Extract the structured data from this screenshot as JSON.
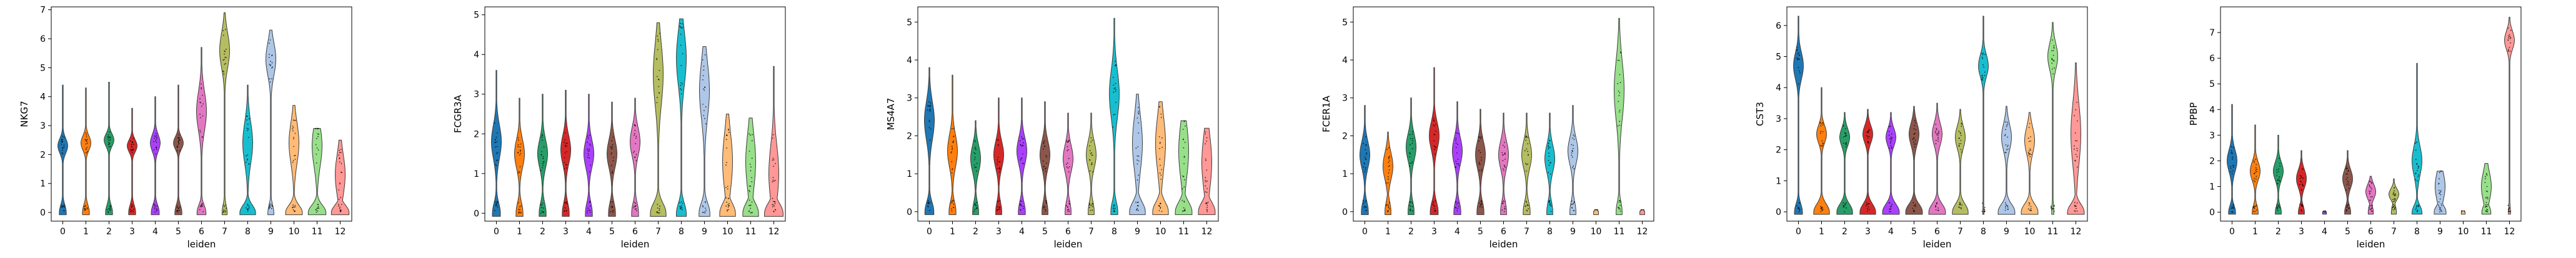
{
  "palette": [
    "#1f77b4",
    "#ff7f0e",
    "#279e68",
    "#d62728",
    "#aa40fc",
    "#8c564b",
    "#e377c2",
    "#b5bd61",
    "#17becf",
    "#aec7e8",
    "#ffbb78",
    "#98df8a",
    "#ff9896"
  ],
  "chart_data": [
    {
      "type": "violin",
      "xlabel": "leiden",
      "ylabel": "NKG7",
      "categories": [
        "0",
        "1",
        "2",
        "3",
        "4",
        "5",
        "6",
        "7",
        "8",
        "9",
        "10",
        "11",
        "12"
      ],
      "ylim": [
        -0.3,
        7.1
      ],
      "yticks": [
        0,
        1,
        2,
        3,
        4,
        5,
        6,
        7
      ],
      "violins": [
        {
          "category": "0",
          "center": 2.3,
          "spread": 0.35,
          "upper": 4.4,
          "base": 0.35
        },
        {
          "category": "1",
          "center": 2.4,
          "spread": 0.35,
          "upper": 4.3,
          "base": 0.35
        },
        {
          "category": "2",
          "center": 2.5,
          "spread": 0.3,
          "upper": 4.5,
          "base": 0.35
        },
        {
          "category": "3",
          "center": 2.3,
          "spread": 0.3,
          "upper": 3.6,
          "base": 0.35
        },
        {
          "category": "4",
          "center": 2.4,
          "spread": 0.4,
          "upper": 4.0,
          "base": 0.4
        },
        {
          "category": "5",
          "center": 2.4,
          "spread": 0.3,
          "upper": 4.4,
          "base": 0.35
        },
        {
          "category": "6",
          "center": 3.5,
          "spread": 0.95,
          "upper": 5.7,
          "base": 0.45
        },
        {
          "category": "7",
          "center": 5.6,
          "spread": 0.85,
          "upper": 6.9,
          "base": 0.25
        },
        {
          "category": "8",
          "center": 2.4,
          "spread": 1.0,
          "upper": 4.4,
          "base": 0.8
        },
        {
          "category": "9",
          "center": 5.3,
          "spread": 0.8,
          "upper": 6.3,
          "base": 0.3
        },
        {
          "category": "10",
          "center": 2.4,
          "spread": 1.0,
          "upper": 3.7,
          "base": 0.85
        },
        {
          "category": "11",
          "center": 2.3,
          "spread": 1.0,
          "upper": 2.9,
          "base": 0.9
        },
        {
          "category": "12",
          "center": 1.3,
          "spread": 1.0,
          "upper": 2.5,
          "base": 0.9
        }
      ]
    },
    {
      "type": "violin",
      "xlabel": "leiden",
      "ylabel": "FCGR3A",
      "categories": [
        "0",
        "1",
        "2",
        "3",
        "4",
        "5",
        "6",
        "7",
        "8",
        "9",
        "10",
        "11",
        "12"
      ],
      "ylim": [
        -0.2,
        5.2
      ],
      "yticks": [
        0,
        1,
        2,
        3,
        4,
        5
      ],
      "violins": [
        {
          "category": "0",
          "center": 1.8,
          "spread": 0.6,
          "upper": 3.6,
          "base": 0.4
        },
        {
          "category": "1",
          "center": 1.5,
          "spread": 0.5,
          "upper": 2.9,
          "base": 0.35
        },
        {
          "category": "2",
          "center": 1.5,
          "spread": 0.5,
          "upper": 3.0,
          "base": 0.35
        },
        {
          "category": "3",
          "center": 1.6,
          "spread": 0.5,
          "upper": 3.1,
          "base": 0.35
        },
        {
          "category": "4",
          "center": 1.5,
          "spread": 0.5,
          "upper": 3.0,
          "base": 0.35
        },
        {
          "category": "5",
          "center": 1.5,
          "spread": 0.5,
          "upper": 2.8,
          "base": 0.35
        },
        {
          "category": "6",
          "center": 1.8,
          "spread": 0.5,
          "upper": 2.9,
          "base": 0.35
        },
        {
          "category": "7",
          "center": 3.5,
          "spread": 1.1,
          "upper": 4.8,
          "base": 0.8
        },
        {
          "category": "8",
          "center": 3.9,
          "spread": 0.95,
          "upper": 4.9,
          "base": 0.5
        },
        {
          "category": "9",
          "center": 3.1,
          "spread": 1.0,
          "upper": 4.2,
          "base": 0.55
        },
        {
          "category": "10",
          "center": 1.3,
          "spread": 1.0,
          "upper": 2.5,
          "base": 0.8
        },
        {
          "category": "11",
          "center": 1.3,
          "spread": 1.0,
          "upper": 2.4,
          "base": 0.8
        },
        {
          "category": "12",
          "center": 1.0,
          "spread": 1.0,
          "upper": 3.7,
          "base": 0.95
        }
      ]
    },
    {
      "type": "violin",
      "xlabel": "leiden",
      "ylabel": "MS4A7",
      "categories": [
        "0",
        "1",
        "2",
        "3",
        "4",
        "5",
        "6",
        "7",
        "8",
        "9",
        "10",
        "11",
        "12"
      ],
      "ylim": [
        -0.25,
        5.4
      ],
      "yticks": [
        0,
        1,
        2,
        3,
        4,
        5
      ],
      "violins": [
        {
          "category": "0",
          "center": 2.4,
          "spread": 0.7,
          "upper": 3.8,
          "base": 0.45
        },
        {
          "category": "1",
          "center": 1.6,
          "spread": 0.6,
          "upper": 3.6,
          "base": 0.35
        },
        {
          "category": "2",
          "center": 1.4,
          "spread": 0.5,
          "upper": 2.4,
          "base": 0.3
        },
        {
          "category": "3",
          "center": 1.5,
          "spread": 0.5,
          "upper": 3.0,
          "base": 0.3
        },
        {
          "category": "4",
          "center": 1.6,
          "spread": 0.5,
          "upper": 3.0,
          "base": 0.35
        },
        {
          "category": "5",
          "center": 1.5,
          "spread": 0.5,
          "upper": 2.9,
          "base": 0.3
        },
        {
          "category": "6",
          "center": 1.4,
          "spread": 0.5,
          "upper": 2.6,
          "base": 0.3
        },
        {
          "category": "7",
          "center": 1.5,
          "spread": 0.5,
          "upper": 2.6,
          "base": 0.3
        },
        {
          "category": "8",
          "center": 3.1,
          "spread": 0.9,
          "upper": 5.1,
          "base": 0.35
        },
        {
          "category": "9",
          "center": 1.8,
          "spread": 1.0,
          "upper": 3.1,
          "base": 0.8
        },
        {
          "category": "10",
          "center": 1.8,
          "spread": 1.0,
          "upper": 2.9,
          "base": 0.8
        },
        {
          "category": "11",
          "center": 1.6,
          "spread": 1.0,
          "upper": 2.4,
          "base": 0.85
        },
        {
          "category": "12",
          "center": 1.3,
          "spread": 1.0,
          "upper": 2.2,
          "base": 0.85
        }
      ]
    },
    {
      "type": "violin",
      "xlabel": "leiden",
      "ylabel": "FCER1A",
      "categories": [
        "0",
        "1",
        "2",
        "3",
        "4",
        "5",
        "6",
        "7",
        "8",
        "9",
        "10",
        "11",
        "12"
      ],
      "ylim": [
        -0.25,
        5.4
      ],
      "yticks": [
        0,
        1,
        2,
        3,
        4,
        5
      ],
      "violins": [
        {
          "category": "0",
          "center": 1.5,
          "spread": 0.5,
          "upper": 2.8,
          "base": 0.35
        },
        {
          "category": "1",
          "center": 1.2,
          "spread": 0.5,
          "upper": 2.1,
          "base": 0.3
        },
        {
          "category": "2",
          "center": 1.7,
          "spread": 0.5,
          "upper": 3.0,
          "base": 0.3
        },
        {
          "category": "3",
          "center": 2.0,
          "spread": 0.5,
          "upper": 3.8,
          "base": 0.4
        },
        {
          "category": "4",
          "center": 1.6,
          "spread": 0.5,
          "upper": 2.9,
          "base": 0.35
        },
        {
          "category": "5",
          "center": 1.5,
          "spread": 0.5,
          "upper": 2.7,
          "base": 0.35
        },
        {
          "category": "6",
          "center": 1.5,
          "spread": 0.5,
          "upper": 2.6,
          "base": 0.3
        },
        {
          "category": "7",
          "center": 1.5,
          "spread": 0.5,
          "upper": 2.6,
          "base": 0.35
        },
        {
          "category": "8",
          "center": 1.4,
          "spread": 0.5,
          "upper": 2.6,
          "base": 0.3
        },
        {
          "category": "9",
          "center": 1.6,
          "spread": 0.5,
          "upper": 2.8,
          "base": 0.3
        },
        {
          "category": "10",
          "center": 0.0,
          "spread": 0.1,
          "upper": 0.05,
          "base": 0.25
        },
        {
          "category": "11",
          "center": 3.2,
          "spread": 1.1,
          "upper": 5.1,
          "base": 0.3
        },
        {
          "category": "12",
          "center": 0.0,
          "spread": 0.1,
          "upper": 0.05,
          "base": 0.25
        }
      ]
    },
    {
      "type": "violin",
      "xlabel": "leiden",
      "ylabel": "CST3",
      "categories": [
        "0",
        "1",
        "2",
        "3",
        "4",
        "5",
        "6",
        "7",
        "8",
        "9",
        "10",
        "11",
        "12"
      ],
      "ylim": [
        -0.3,
        6.6
      ],
      "yticks": [
        0,
        1,
        2,
        3,
        4,
        5,
        6
      ],
      "violins": [
        {
          "category": "0",
          "center": 4.7,
          "spread": 0.6,
          "upper": 6.3,
          "base": 0.4
        },
        {
          "category": "1",
          "center": 2.5,
          "spread": 0.4,
          "upper": 4.0,
          "base": 0.8
        },
        {
          "category": "2",
          "center": 2.4,
          "spread": 0.4,
          "upper": 3.2,
          "base": 0.8
        },
        {
          "category": "3",
          "center": 2.5,
          "spread": 0.4,
          "upper": 3.3,
          "base": 0.8
        },
        {
          "category": "4",
          "center": 2.4,
          "spread": 0.4,
          "upper": 3.2,
          "base": 0.85
        },
        {
          "category": "5",
          "center": 2.5,
          "spread": 0.5,
          "upper": 3.4,
          "base": 0.85
        },
        {
          "category": "6",
          "center": 2.5,
          "spread": 0.5,
          "upper": 3.5,
          "base": 0.85
        },
        {
          "category": "7",
          "center": 2.4,
          "spread": 0.5,
          "upper": 3.3,
          "base": 0.8
        },
        {
          "category": "8",
          "center": 4.7,
          "spread": 0.5,
          "upper": 6.3,
          "base": 0.05
        },
        {
          "category": "9",
          "center": 2.4,
          "spread": 0.6,
          "upper": 3.4,
          "base": 0.85
        },
        {
          "category": "10",
          "center": 2.3,
          "spread": 0.6,
          "upper": 3.2,
          "base": 0.85
        },
        {
          "category": "11",
          "center": 5.0,
          "spread": 0.6,
          "upper": 6.1,
          "base": 0.1
        },
        {
          "category": "12",
          "center": 2.5,
          "spread": 1.4,
          "upper": 4.8,
          "base": 0.85
        }
      ]
    },
    {
      "type": "violin",
      "xlabel": "leiden",
      "ylabel": "PPBP",
      "categories": [
        "0",
        "1",
        "2",
        "3",
        "4",
        "5",
        "6",
        "7",
        "8",
        "9",
        "10",
        "11",
        "12"
      ],
      "ylim": [
        -0.35,
        8.0
      ],
      "yticks": [
        0,
        1,
        2,
        3,
        4,
        5,
        6,
        7
      ],
      "violins": [
        {
          "category": "0",
          "center": 2.0,
          "spread": 0.6,
          "upper": 4.2,
          "base": 0.35
        },
        {
          "category": "1",
          "center": 1.6,
          "spread": 0.5,
          "upper": 3.4,
          "base": 0.3
        },
        {
          "category": "2",
          "center": 1.6,
          "spread": 0.5,
          "upper": 3.0,
          "base": 0.3
        },
        {
          "category": "3",
          "center": 1.3,
          "spread": 0.5,
          "upper": 2.4,
          "base": 0.3
        },
        {
          "category": "4",
          "center": 0.0,
          "spread": 0.1,
          "upper": 0.05,
          "base": 0.2
        },
        {
          "category": "5",
          "center": 1.3,
          "spread": 0.5,
          "upper": 2.4,
          "base": 0.3
        },
        {
          "category": "6",
          "center": 0.8,
          "spread": 0.4,
          "upper": 1.4,
          "base": 0.25
        },
        {
          "category": "7",
          "center": 0.7,
          "spread": 0.3,
          "upper": 1.3,
          "base": 0.25
        },
        {
          "category": "8",
          "center": 2.0,
          "spread": 0.8,
          "upper": 5.8,
          "base": 0.5
        },
        {
          "category": "9",
          "center": 1.0,
          "spread": 0.8,
          "upper": 1.6,
          "base": 0.6
        },
        {
          "category": "10",
          "center": 0.0,
          "spread": 0.1,
          "upper": 0.05,
          "base": 0.2
        },
        {
          "category": "11",
          "center": 1.0,
          "spread": 0.8,
          "upper": 1.9,
          "base": 0.45
        },
        {
          "category": "12",
          "center": 6.7,
          "spread": 0.5,
          "upper": 7.6,
          "base": 0.1
        }
      ]
    }
  ]
}
